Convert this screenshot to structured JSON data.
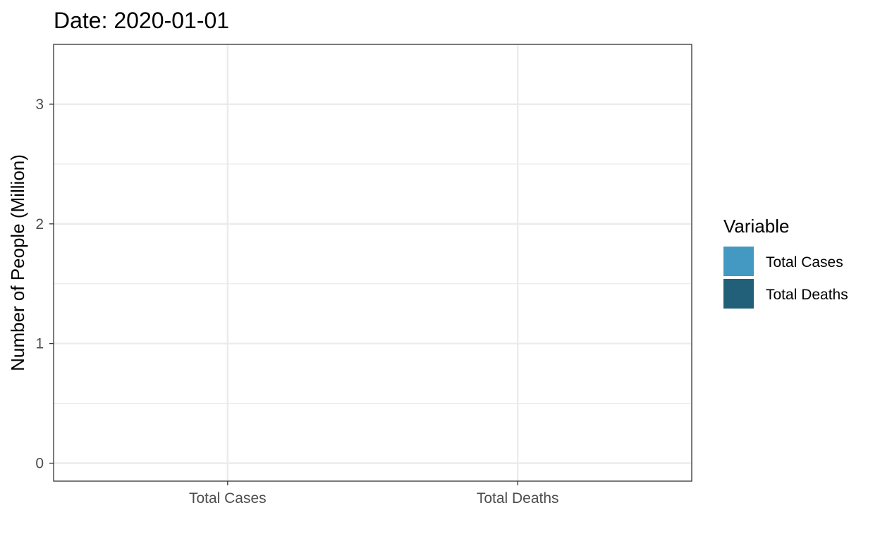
{
  "chart_data": {
    "type": "bar",
    "title": "Date: 2020-01-01",
    "xlabel": "",
    "ylabel": "Number of People (Million)",
    "categories": [
      "Total Cases",
      "Total Deaths"
    ],
    "values": [
      0,
      0
    ],
    "ylim": [
      -0.15,
      3.5
    ],
    "yticks": [
      0,
      1,
      2,
      3
    ],
    "grid": true,
    "legend": {
      "title": "Variable",
      "position": "right",
      "items": [
        {
          "label": "Total Cases",
          "color": "#4399C2"
        },
        {
          "label": "Total Deaths",
          "color": "#225F79"
        }
      ]
    }
  }
}
